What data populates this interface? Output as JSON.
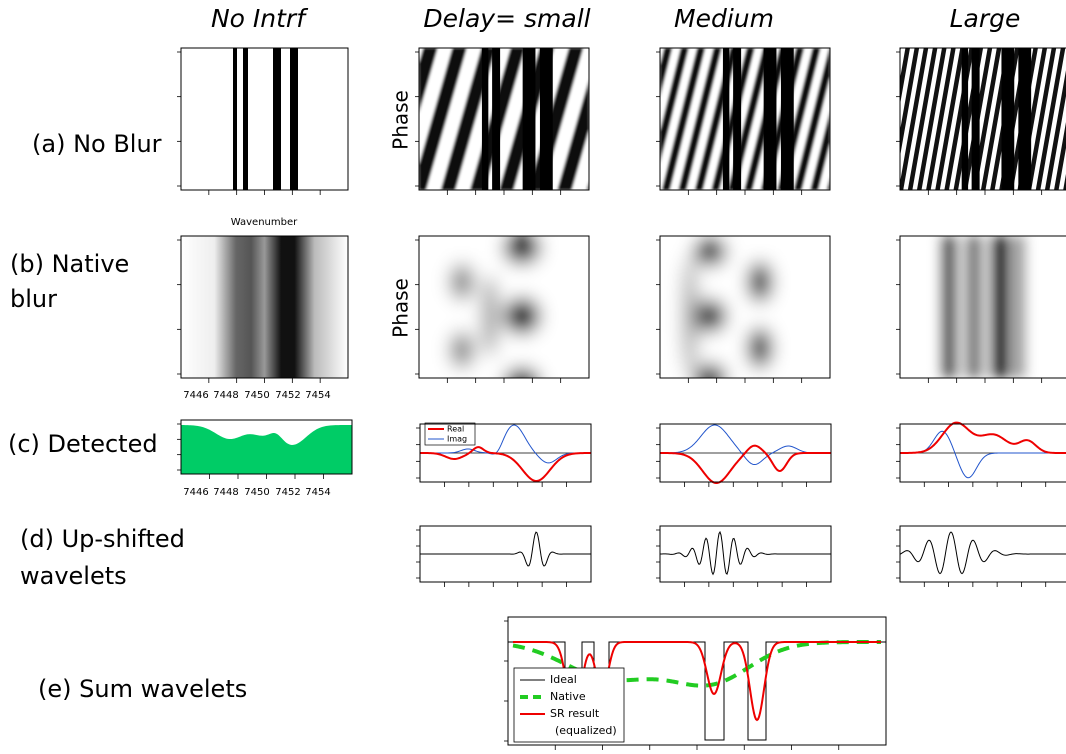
{
  "columns": [
    "No Intrf",
    "Delay= small",
    "Medium",
    "Large"
  ],
  "rows": [
    [
      "(a) No Blur"
    ],
    [
      "(b) Native",
      "blur"
    ],
    [
      "(c) Detected"
    ],
    [
      "(d) Up-shifted",
      "wavelets"
    ],
    [
      "(e) Sum wavelets"
    ]
  ],
  "phase_label": "Phase",
  "wavenumber_label": "Wavenumber",
  "wavenumber_ticks": [
    "7446",
    "7448",
    "7450",
    "7452",
    "7454"
  ],
  "detected_legend": [
    "Real",
    "Imag"
  ],
  "sum_legend": [
    "Ideal",
    "Native",
    "SR result",
    "(equalized)"
  ]
}
